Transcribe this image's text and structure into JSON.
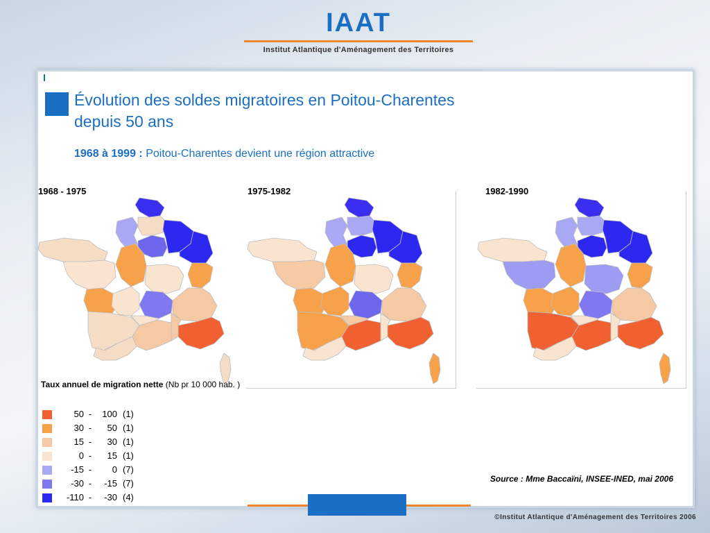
{
  "header": {
    "logo": "IAAT",
    "logo_subtitle": "Institut Atlantique d'Aménagement des Territoires"
  },
  "slide": {
    "title_line1": "Évolution des soldes migratoires en Poitou-Charentes",
    "title_line2": "depuis 50 ans",
    "subtitle_strong": "1968 à 1999 :",
    "subtitle_rest": " Poitou-Charentes devient une région attractive"
  },
  "maps": [
    {
      "label": "1968 - 1975",
      "colors": [
        "#3a2ef0",
        "#a8a8f4",
        "#f5dcc4",
        "#f5dcc4",
        "#6f66ee",
        "#2d28ef",
        "#2d28ef",
        "#f7a24a",
        "#f7a24a",
        "#f9e4d0",
        "#f9e4d0",
        "#7f78f0",
        "#f5c9a4",
        "#f7a24a",
        "#f9e4d0",
        "#f5dcc4",
        "#f5c9a4",
        "#f06030",
        "#f5c9a4",
        "#f9e4d0",
        "#f5dcc4",
        "#f5dcc4"
      ]
    },
    {
      "label": "1975-1982",
      "colors": [
        "#3a2ef0",
        "#a8a8f4",
        "#a8a8f4",
        "#f9e4d0",
        "#2d28ef",
        "#2d28ef",
        "#2d28ef",
        "#f7a24a",
        "#f7a24a",
        "#f9e4d0",
        "#f5c9a4",
        "#6f66ee",
        "#f5c9a4",
        "#f7a24a",
        "#f7a24a",
        "#f7a24a",
        "#f06030",
        "#f06030",
        "#f9e4d0",
        "#f5c9a4",
        "#f9e4d0",
        "#f7a24a"
      ]
    },
    {
      "label": "1982-1990",
      "colors": [
        "#3a2ef0",
        "#a8a8f4",
        "#a8a8f4",
        "#f9e4d0",
        "#2d28ef",
        "#2d28ef",
        "#2d28ef",
        "#f7a24a",
        "#f7a24a",
        "#9d9bf2",
        "#9d9bf2",
        "#7f78f0",
        "#f5c9a4",
        "#f7a24a",
        "#f7a24a",
        "#f06030",
        "#f06030",
        "#f06030",
        "#f9e4d0",
        "#f9e4d0",
        "#f9e4d0",
        "#f7a24a"
      ]
    }
  ],
  "legend": {
    "title_strong": "Taux annuel de migration nette",
    "title_rest": " (Nb pr 10 000 hab. )",
    "items": [
      {
        "low": "50",
        "high": "100",
        "count": "(1)",
        "color": "#f06030"
      },
      {
        "low": "30",
        "high": "50",
        "count": "(1)",
        "color": "#f7a24a"
      },
      {
        "low": "15",
        "high": "30",
        "count": "(1)",
        "color": "#f5c9a4"
      },
      {
        "low": "0",
        "high": "15",
        "count": "(1)",
        "color": "#f9e4d0"
      },
      {
        "low": "-15",
        "high": "0",
        "count": "(7)",
        "color": "#a8a8f4"
      },
      {
        "low": "-30",
        "high": "-15",
        "count": "(7)",
        "color": "#7f78f0"
      },
      {
        "low": "-110",
        "high": "-30",
        "count": "(4)",
        "color": "#2d28ef"
      }
    ]
  },
  "source": "Source : Mme Baccaïni, INSEE-INED, mai 2006",
  "footer": "©Institut Atlantique d'Aménagement des Territoires 2006"
}
